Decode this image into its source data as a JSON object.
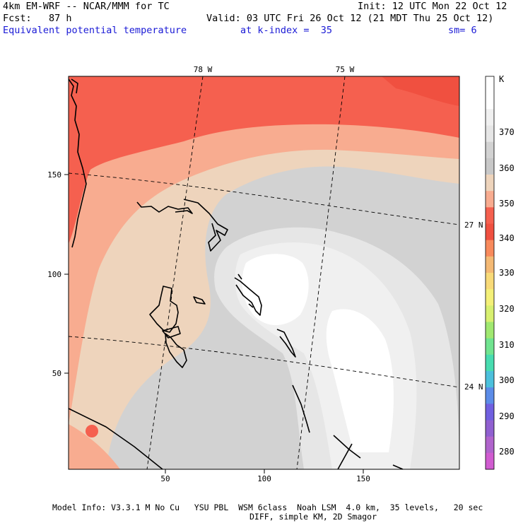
{
  "header": {
    "model": "4km EM-WRF -- NCAR/MMM for TC",
    "init": "Init: 12 UTC Mon 22 Oct 12",
    "fcst": "Fcst:   87 h",
    "valid": "Valid: 03 UTC Fri 26 Oct 12 (21 MDT Thu 25 Oct 12)",
    "field": "Equivalent potential temperature",
    "kindex": "at k-index =  35",
    "sm": "sm= 6"
  },
  "map": {
    "x_ticks": [
      "50",
      "100",
      "150"
    ],
    "y_ticks": [
      "150",
      "100",
      "50"
    ],
    "lon_labels": [
      "78 W",
      "75 W"
    ],
    "lat_labels": [
      "27 N",
      "24 N"
    ]
  },
  "colorbar": {
    "unit": "K",
    "labels": [
      "370",
      "360",
      "350",
      "340",
      "330",
      "320",
      "310",
      "300",
      "290",
      "280"
    ],
    "colors": [
      "#ffffff",
      "#ffffff",
      "#f0f0f0",
      "#e6e6e6",
      "#d2d2d2",
      "#c8c8c8",
      "#eed4bc",
      "#f8ac90",
      "#f5604f",
      "#f05040",
      "#f88a5c",
      "#f4b974",
      "#f8da78",
      "#f4f078",
      "#d8f070",
      "#a0e870",
      "#70e490",
      "#48dcb0",
      "#4cc0dc",
      "#5c8ce8",
      "#7060e0",
      "#9060d0",
      "#b064cc",
      "#d05cd0"
    ]
  },
  "footer": {
    "line1": "Model Info: V3.3.1 M No Cu   YSU PBL  WSM 6class  Noah LSM  4.0 km,  35 levels,   20 sec",
    "line2": "DIFF, simple KM, 2D Smagor"
  }
}
